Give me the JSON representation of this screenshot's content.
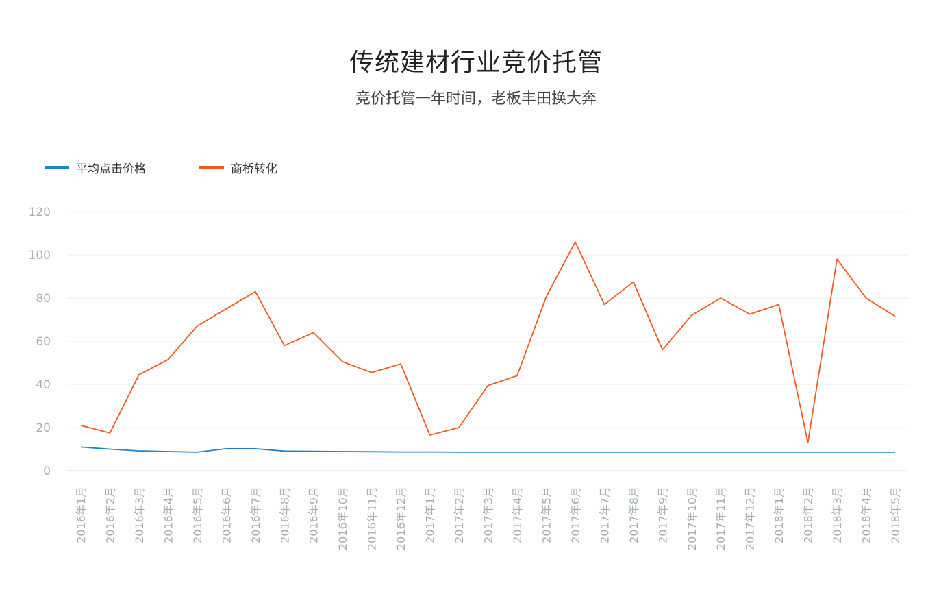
{
  "title": "传统建材行业竞价托管",
  "subtitle": "竞价托管一年时间，老板丰田换大奔",
  "chart_data": {
    "type": "line",
    "title": "传统建材行业竞价托管",
    "subtitle": "竞价托管一年时间，老板丰田换大奔",
    "xlabel": "",
    "ylabel": "",
    "ylim": [
      0,
      120
    ],
    "yticks": [
      "0",
      "20",
      "40",
      "60",
      "80",
      "100",
      "120"
    ],
    "grid": true,
    "legend_position": "top-left",
    "categories": [
      "2016年1月",
      "2016年2月",
      "2016年3月",
      "2016年4月",
      "2016年5月",
      "2016年6月",
      "2016年7月",
      "2016年8月",
      "2016年9月",
      "2016年10月",
      "2016年11月",
      "2016年12月",
      "2017年1月",
      "2017年2月",
      "2017年3月",
      "2017年4月",
      "2017年5月",
      "2017年6月",
      "2017年7月",
      "2017年8月",
      "2017年9月",
      "2017年10月",
      "2017年11月",
      "2017年12月",
      "2018年1月",
      "2018年2月",
      "2018年3月",
      "2018年4月",
      "2018年5月"
    ],
    "series": [
      {
        "name": "平均点击价格",
        "color": "#1a85c7",
        "values": [
          11,
          10,
          9.2,
          8.9,
          8.6,
          10.2,
          10.2,
          9.1,
          9.0,
          8.9,
          8.8,
          8.7,
          8.7,
          8.6,
          8.6,
          8.6,
          8.6,
          8.6,
          8.6,
          8.6,
          8.6,
          8.6,
          8.6,
          8.6,
          8.6,
          8.6,
          8.6,
          8.6,
          8.6
        ]
      },
      {
        "name": "商桥转化",
        "color": "#f05a1c",
        "values": [
          21,
          17.5,
          44.5,
          51.5,
          67,
          75,
          83,
          58,
          64,
          50.5,
          45.5,
          49.5,
          16.5,
          20,
          39.5,
          44,
          80.5,
          106,
          77,
          87.5,
          56,
          72,
          80,
          72.5,
          77,
          13,
          98,
          80,
          71.5
        ]
      }
    ]
  }
}
